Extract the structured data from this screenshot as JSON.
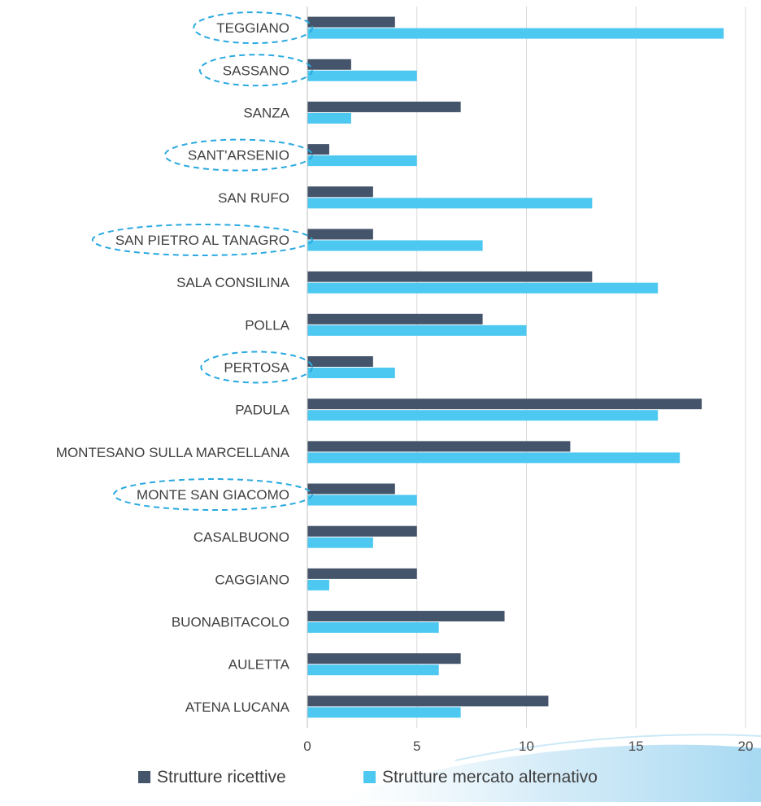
{
  "chart_data": {
    "type": "bar",
    "orientation": "horizontal",
    "categories": [
      "ATENA LUCANA",
      "AULETTA",
      "BUONABITACOLO",
      "CAGGIANO",
      "CASALBUONO",
      "MONTE SAN GIACOMO",
      "MONTESANO SULLA MARCELLANA",
      "PADULA",
      "PERTOSA",
      "POLLA",
      "SALA CONSILINA",
      "SAN PIETRO AL TANAGRO",
      "SAN RUFO",
      "SANT'ARSENIO",
      "SANZA",
      "SASSANO",
      "TEGGIANO"
    ],
    "series": [
      {
        "name": "Strutture ricettive",
        "color": "#44546A",
        "values": [
          11,
          7,
          9,
          5,
          5,
          4,
          12,
          18,
          3,
          8,
          13,
          3,
          3,
          1,
          7,
          2,
          4
        ]
      },
      {
        "name": "Strutture mercato alternativo",
        "color": "#4DC8F0",
        "values": [
          7,
          6,
          6,
          1,
          3,
          5,
          17,
          16,
          4,
          10,
          16,
          8,
          13,
          5,
          2,
          5,
          19
        ]
      }
    ],
    "highlighted_categories": [
      "TEGGIANO",
      "SASSANO",
      "SANT'ARSENIO",
      "SAN PIETRO AL TANAGRO",
      "PERTOSA",
      "MONTE SAN GIACOMO"
    ],
    "highlight_color": "#29A9E0",
    "xlim": [
      0,
      20
    ],
    "xticks": [
      0,
      5,
      10,
      15,
      20
    ],
    "grid": true,
    "legend_position": "bottom",
    "title": "",
    "xlabel": "",
    "ylabel": ""
  }
}
